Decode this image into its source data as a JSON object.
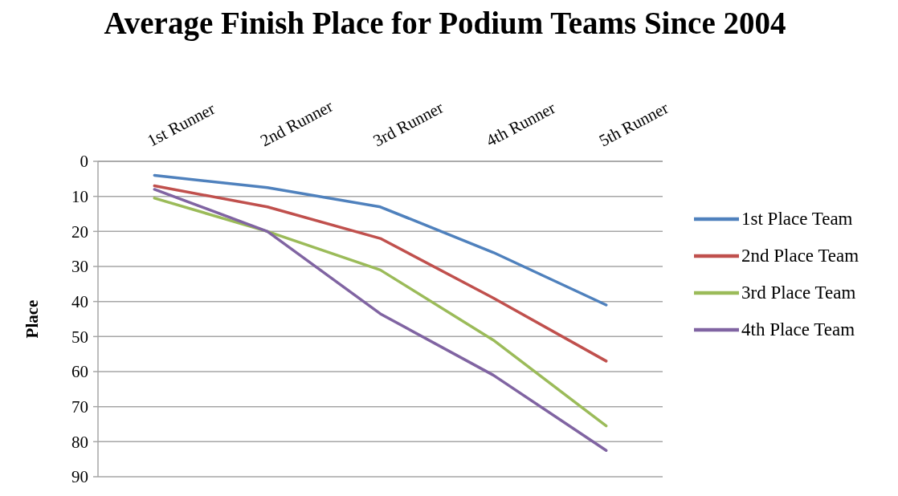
{
  "chart_data": {
    "type": "line",
    "title": "Average Finish Place for Podium Teams Since 2004",
    "ylabel": "Place",
    "categories": [
      "1st Runner",
      "2nd Runner",
      "3rd Runner",
      "4th Runner",
      "5th Runner"
    ],
    "series": [
      {
        "name": "1st Place Team",
        "color": "#4f81bd",
        "values": [
          4,
          7.5,
          13,
          26,
          41
        ]
      },
      {
        "name": "2nd Place Team",
        "color": "#c0504d",
        "values": [
          7,
          13,
          22,
          39,
          57
        ]
      },
      {
        "name": "3rd Place Team",
        "color": "#9bbb59",
        "values": [
          10.5,
          20,
          31,
          51,
          75.5
        ]
      },
      {
        "name": "4th Place Team",
        "color": "#8064a2",
        "values": [
          8,
          20,
          43.5,
          61,
          82.5
        ]
      }
    ],
    "ylim": [
      90,
      0
    ],
    "yticks": [
      0,
      10,
      20,
      30,
      40,
      50,
      60,
      70,
      80,
      90
    ],
    "grid": "y",
    "legend": "right"
  }
}
